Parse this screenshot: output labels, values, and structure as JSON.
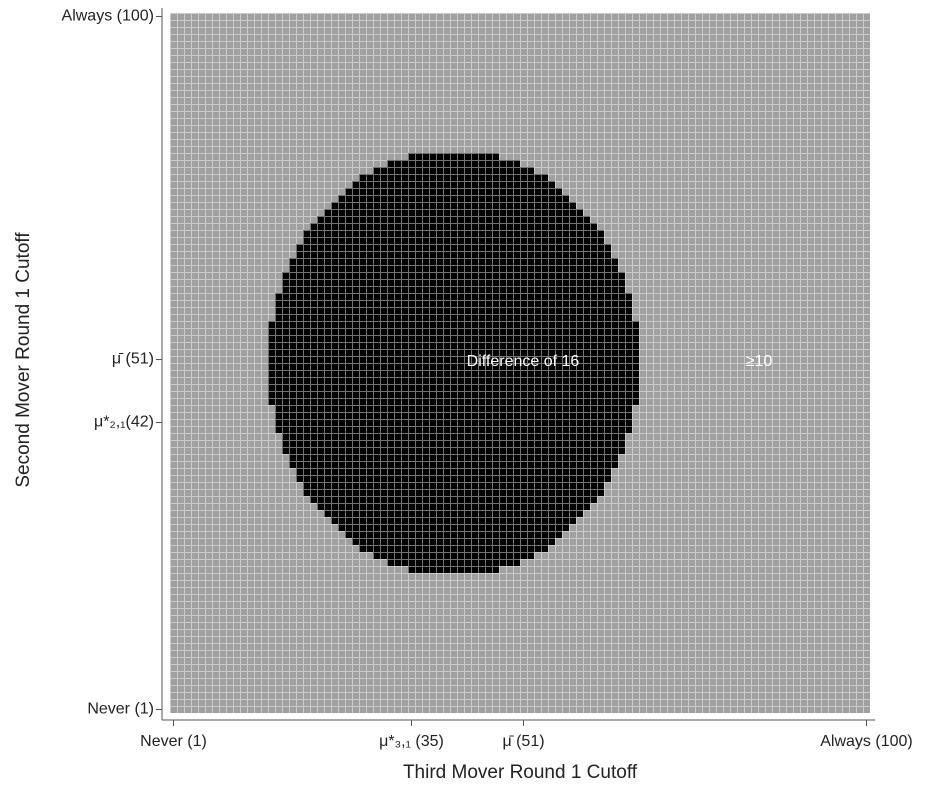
{
  "chart_data": {
    "type": "heatmap",
    "xlabel": "Third Mover Round 1 Cutoff",
    "ylabel": "Second Mover Round 1 Cutoff",
    "xlim": [
      0.5,
      100.5
    ],
    "ylim": [
      0.5,
      100.5
    ],
    "xticks": [
      {
        "value": 1,
        "label": "Never (1)"
      },
      {
        "value": 35,
        "label": "μ*₃,₁ (35)"
      },
      {
        "value": 51,
        "label": "μ̄ (51)"
      },
      {
        "value": 100,
        "label": "Always (100)"
      }
    ],
    "yticks": [
      {
        "value": 1,
        "label": "Never (1)"
      },
      {
        "value": 42,
        "label": "μ*₂,₁(42)"
      },
      {
        "value": 51,
        "label": "μ̄ (51)"
      },
      {
        "value": 100,
        "label": "Always (100)"
      }
    ],
    "background_color": "#a0a0a0",
    "region": {
      "color": "#000000",
      "rows": [
        21,
        22,
        23,
        24,
        25,
        26,
        27,
        28,
        29,
        30,
        31,
        32,
        33,
        34,
        35,
        36,
        37,
        38,
        39,
        40,
        41,
        42,
        43,
        44,
        45,
        46,
        47,
        48,
        49,
        50,
        51,
        52,
        53,
        54,
        55,
        56,
        57,
        58,
        59,
        60,
        61,
        62,
        63,
        64,
        65,
        66,
        67,
        68,
        69,
        70,
        71,
        72,
        73,
        74,
        75,
        76,
        77,
        78,
        79,
        80
      ],
      "x_start": [
        35,
        32,
        30,
        28,
        27,
        26,
        25,
        24,
        23,
        22,
        21,
        20,
        20,
        19,
        19,
        18,
        18,
        17,
        17,
        17,
        16,
        16,
        16,
        16,
        15,
        15,
        15,
        15,
        15,
        15,
        15,
        15,
        15,
        15,
        15,
        15,
        16,
        16,
        16,
        16,
        17,
        17,
        17,
        18,
        18,
        19,
        19,
        20,
        20,
        21,
        22,
        23,
        24,
        25,
        26,
        27,
        28,
        30,
        32,
        35
      ],
      "x_end": [
        47,
        50,
        52,
        54,
        55,
        56,
        57,
        58,
        59,
        60,
        61,
        62,
        62,
        63,
        63,
        64,
        64,
        65,
        65,
        65,
        66,
        66,
        66,
        66,
        67,
        67,
        67,
        67,
        67,
        67,
        67,
        67,
        67,
        67,
        67,
        67,
        66,
        66,
        66,
        66,
        65,
        65,
        65,
        64,
        64,
        63,
        63,
        62,
        62,
        61,
        60,
        59,
        58,
        57,
        56,
        55,
        54,
        52,
        50,
        47
      ]
    },
    "annotations": [
      "Difference of 16",
      "≥10"
    ]
  }
}
